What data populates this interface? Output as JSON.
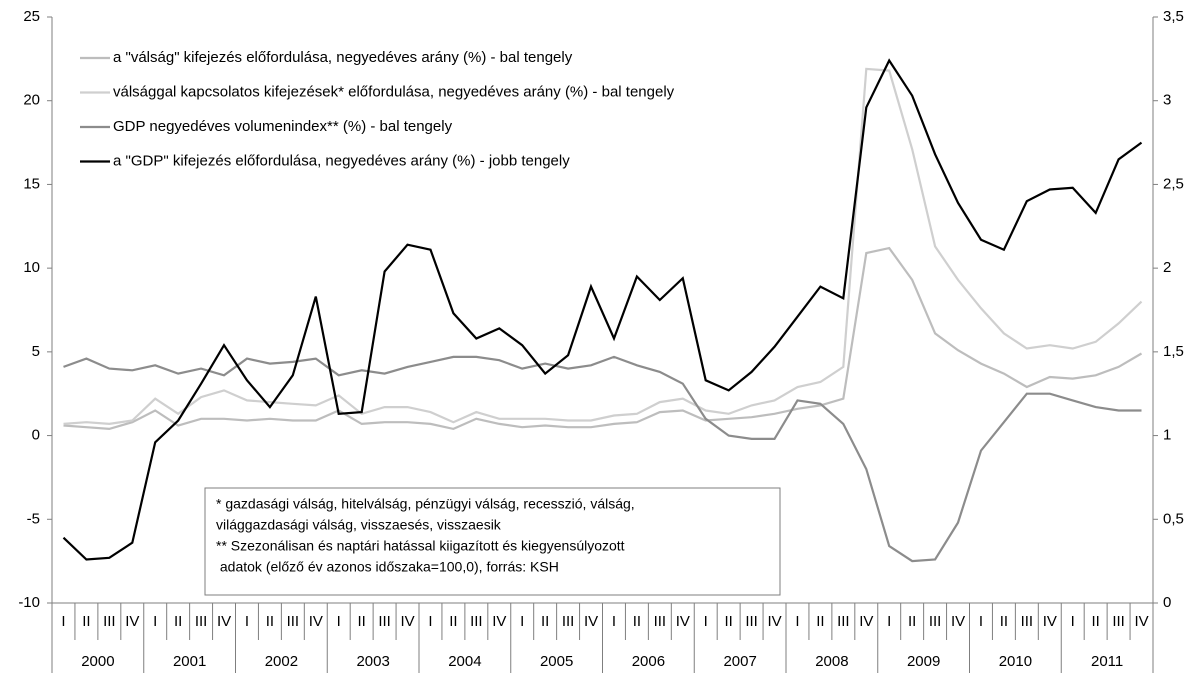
{
  "chart_data": {
    "type": "line",
    "categories": [
      "I",
      "II",
      "III",
      "IV",
      "I",
      "II",
      "III",
      "IV",
      "I",
      "II",
      "III",
      "IV",
      "I",
      "II",
      "III",
      "IV",
      "I",
      "II",
      "III",
      "IV",
      "I",
      "II",
      "III",
      "IV",
      "I",
      "II",
      "III",
      "IV",
      "I",
      "II",
      "III",
      "IV",
      "I",
      "II",
      "III",
      "IV",
      "I",
      "II",
      "III",
      "IV",
      "I",
      "II",
      "III",
      "IV",
      "I",
      "II",
      "III",
      "IV"
    ],
    "years": [
      "2000",
      "2001",
      "2002",
      "2003",
      "2004",
      "2005",
      "2006",
      "2007",
      "2008",
      "2009",
      "2010",
      "2011"
    ],
    "series": [
      {
        "name": "a \"válság\" kifejezés előfordulása, negyedéves arány (%) - bal tengely",
        "color": "#bdbdbd",
        "axis": "y",
        "values": [
          0.6,
          0.5,
          0.4,
          0.8,
          1.5,
          0.6,
          1.0,
          1.0,
          0.9,
          1.0,
          0.9,
          0.9,
          1.5,
          0.7,
          0.8,
          0.8,
          0.7,
          0.4,
          1.0,
          0.7,
          0.5,
          0.6,
          0.5,
          0.5,
          0.7,
          0.8,
          1.4,
          1.5,
          0.9,
          1.0,
          1.1,
          1.3,
          1.6,
          1.8,
          2.2,
          10.9,
          11.2,
          9.3,
          6.1,
          5.1,
          4.3,
          3.7,
          2.9,
          3.5,
          3.4,
          3.6,
          4.1,
          4.9
        ]
      },
      {
        "name": "válsággal kapcsolatos kifejezések* előfordulása, negyedéves arány (%) - bal tengely",
        "color": "#cfcfcf",
        "axis": "y",
        "values": [
          0.7,
          0.8,
          0.7,
          0.9,
          2.2,
          1.3,
          2.3,
          2.7,
          2.1,
          2.0,
          1.9,
          1.8,
          2.4,
          1.3,
          1.7,
          1.7,
          1.4,
          0.8,
          1.4,
          1.0,
          1.0,
          1.0,
          0.9,
          0.9,
          1.2,
          1.3,
          2.0,
          2.2,
          1.5,
          1.3,
          1.8,
          2.1,
          2.9,
          3.2,
          4.1,
          21.9,
          21.8,
          17.1,
          11.3,
          9.3,
          7.6,
          6.1,
          5.2,
          5.4,
          5.2,
          5.6,
          6.7,
          8.0
        ]
      },
      {
        "name": "GDP negyedéves volumenindex** (%) - bal tengely",
        "color": "#8c8c8c",
        "axis": "y",
        "values": [
          4.1,
          4.6,
          4.0,
          3.9,
          4.2,
          3.7,
          4.0,
          3.6,
          4.6,
          4.3,
          4.4,
          4.6,
          3.6,
          3.9,
          3.7,
          4.1,
          4.4,
          4.7,
          4.7,
          4.5,
          4.0,
          4.3,
          4.0,
          4.2,
          4.7,
          4.2,
          3.8,
          3.1,
          1.0,
          0.0,
          -0.2,
          -0.2,
          2.1,
          1.9,
          0.7,
          -2.0,
          -6.6,
          -7.5,
          -7.4,
          -5.2,
          -0.9,
          0.8,
          2.5,
          2.5,
          2.1,
          1.7,
          1.5,
          1.5
        ]
      },
      {
        "name": "a \"GDP\" kifejezés előfordulása, negyedéves arány (%) - jobb tengely",
        "color": "#000000",
        "axis": "y2",
        "values": [
          0.39,
          0.26,
          0.27,
          0.36,
          0.96,
          1.09,
          1.31,
          1.54,
          1.33,
          1.17,
          1.36,
          1.83,
          1.13,
          1.14,
          1.98,
          2.14,
          2.11,
          1.73,
          1.58,
          1.64,
          1.54,
          1.37,
          1.48,
          1.89,
          1.58,
          1.95,
          1.81,
          1.94,
          1.33,
          1.27,
          1.38,
          1.53,
          1.71,
          1.89,
          1.82,
          2.96,
          3.24,
          3.03,
          2.68,
          2.39,
          2.17,
          2.11,
          2.4,
          2.47,
          2.48,
          2.33,
          2.65,
          2.75
        ]
      }
    ],
    "ylim": [
      -10,
      25
    ],
    "yticks": [
      -10,
      -5,
      0,
      5,
      10,
      15,
      20,
      25
    ],
    "y2lim": [
      0,
      3.5
    ],
    "y2ticks": [
      0,
      {
        "value": 0.5,
        "label": "0,5"
      },
      1,
      {
        "value": 1.5,
        "label": "1,5"
      },
      2,
      {
        "value": 2.5,
        "label": "2,5"
      },
      3,
      {
        "value": 3.5,
        "label": "3,5"
      }
    ],
    "annotation": [
      "* gazdasági válság, hitelválság, pénzügyi válság, recesszió, válság,",
      "világgazdasági válság, visszaesés, visszaesik",
      "** Szezonálisan és naptári hatással kiigazított és kiegyensúlyozott",
      " adatok (előző év azonos időszaka=100,0), forrás: KSH"
    ]
  }
}
